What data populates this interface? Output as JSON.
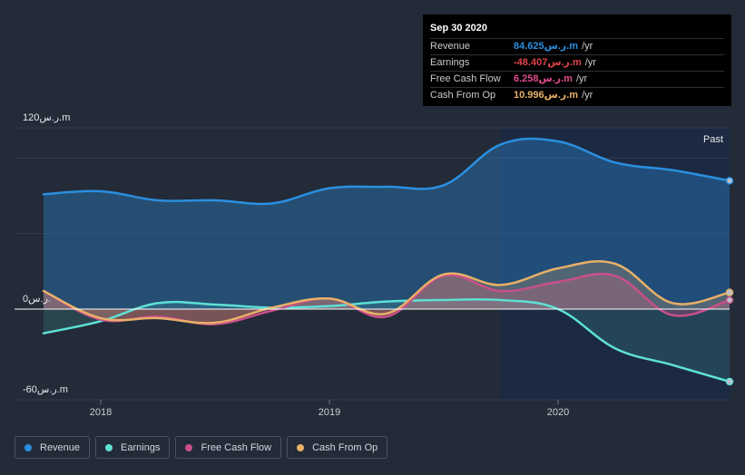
{
  "chart_data": {
    "type": "line",
    "title": "",
    "x_range": [
      2017.75,
      2020.75
    ],
    "ylim": [
      -60,
      120
    ],
    "y_axis_labels": [
      {
        "value": 120,
        "label": "120ر.س.m"
      },
      {
        "value": 0,
        "label": "0ر.س."
      },
      {
        "value": -60,
        "label": "-60ر.س.m"
      }
    ],
    "x_ticks": [
      {
        "x": 2018.0,
        "label": "2018"
      },
      {
        "x": 2019.0,
        "label": "2019"
      },
      {
        "x": 2020.0,
        "label": "2020"
      }
    ],
    "past_region_start": 2019.75,
    "past_label": "Past",
    "series": [
      {
        "name": "Revenue",
        "key": "revenue",
        "color": "#2b8fe0",
        "x": [
          2017.75,
          2018.0,
          2018.25,
          2018.5,
          2018.75,
          2019.0,
          2019.25,
          2019.5,
          2019.75,
          2020.0,
          2020.25,
          2020.5,
          2020.75
        ],
        "values": [
          76,
          78,
          72,
          72,
          70,
          80,
          81,
          82,
          109,
          111,
          97,
          92,
          85
        ]
      },
      {
        "name": "Earnings",
        "key": "earnings",
        "color": "#5ee0d6",
        "x": [
          2017.75,
          2018.0,
          2018.25,
          2018.5,
          2018.75,
          2019.0,
          2019.25,
          2019.5,
          2019.75,
          2020.0,
          2020.25,
          2020.5,
          2020.75
        ],
        "values": [
          -16,
          -8,
          4,
          3,
          1,
          2,
          5,
          6,
          6,
          0,
          -26,
          -37,
          -48
        ]
      },
      {
        "name": "Free Cash Flow",
        "key": "fcf",
        "color": "#c94f8a",
        "x": [
          2017.75,
          2018.0,
          2018.25,
          2018.5,
          2018.75,
          2019.0,
          2019.25,
          2019.5,
          2019.75,
          2020.0,
          2020.25,
          2020.5,
          2020.75
        ],
        "values": [
          12,
          -7,
          -5,
          -10,
          -1,
          7,
          -5,
          22,
          12,
          18,
          22,
          -4,
          6
        ]
      },
      {
        "name": "Cash From Op",
        "key": "cfo",
        "color": "#e8b068",
        "x": [
          2017.75,
          2018.0,
          2018.25,
          2018.5,
          2018.75,
          2019.0,
          2019.25,
          2019.5,
          2019.75,
          2020.0,
          2020.25,
          2020.5,
          2020.75
        ],
        "values": [
          12,
          -6,
          -6,
          -9,
          1,
          7,
          -3,
          23,
          16,
          27,
          30,
          4,
          11
        ]
      }
    ]
  },
  "tooltip": {
    "date": "Sep 30 2020",
    "rows": [
      {
        "label": "Revenue",
        "value": "84.625ر.س.m",
        "unit": "/yr",
        "color": "#2b8fe0"
      },
      {
        "label": "Earnings",
        "value": "-48.407ر.س.m",
        "unit": "/yr",
        "color": "#e0434b"
      },
      {
        "label": "Free Cash Flow",
        "value": "6.258ر.س.m",
        "unit": "/yr",
        "color": "#e04c8d"
      },
      {
        "label": "Cash From Op",
        "value": "10.996ر.س.m",
        "unit": "/yr",
        "color": "#e8b068"
      }
    ]
  },
  "legend": [
    {
      "label": "Revenue",
      "color": "#2b8fe0"
    },
    {
      "label": "Earnings",
      "color": "#5ee0d6"
    },
    {
      "label": "Free Cash Flow",
      "color": "#c94f8a"
    },
    {
      "label": "Cash From Op",
      "color": "#e8b068"
    }
  ]
}
